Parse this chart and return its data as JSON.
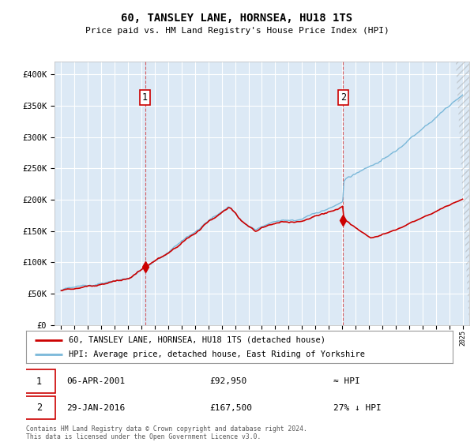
{
  "title": "60, TANSLEY LANE, HORNSEA, HU18 1TS",
  "subtitle": "Price paid vs. HM Land Registry's House Price Index (HPI)",
  "background_color": "#dce9f5",
  "outer_bg_color": "#ffffff",
  "hpi_color": "#7ab8d9",
  "price_color": "#cc0000",
  "sale1_date": 2001.27,
  "sale1_price": 92950,
  "sale2_date": 2016.08,
  "sale2_price": 167500,
  "legend_line1": "60, TANSLEY LANE, HORNSEA, HU18 1TS (detached house)",
  "legend_line2": "HPI: Average price, detached house, East Riding of Yorkshire",
  "annotation1_date": "06-APR-2001",
  "annotation1_price": "£92,950",
  "annotation1_vs": "≈ HPI",
  "annotation2_date": "29-JAN-2016",
  "annotation2_price": "£167,500",
  "annotation2_vs": "27% ↓ HPI",
  "footer": "Contains HM Land Registry data © Crown copyright and database right 2024.\nThis data is licensed under the Open Government Licence v3.0.",
  "xmin": 1994.5,
  "xmax": 2025.5,
  "ymin": 0,
  "ymax": 420000
}
